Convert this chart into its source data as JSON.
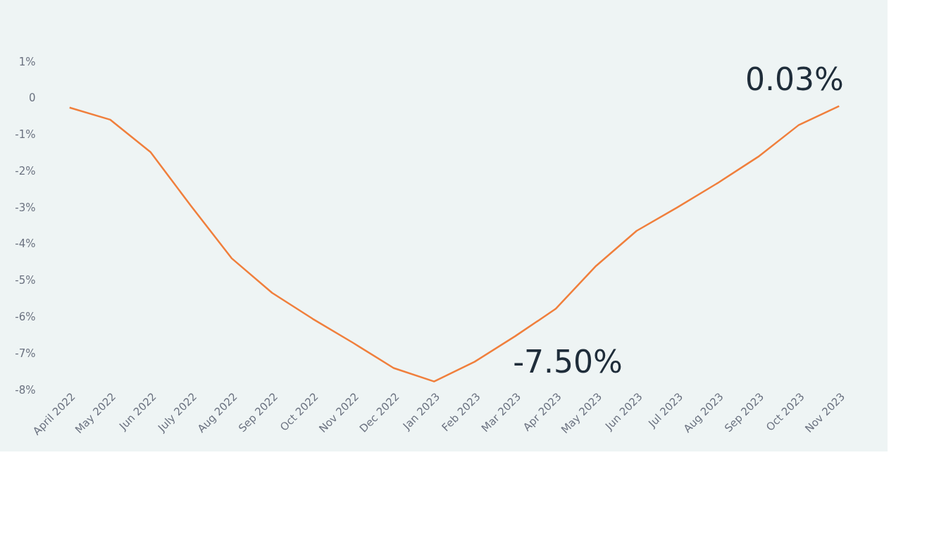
{
  "chart_data": {
    "type": "line",
    "categories": [
      "April 2022",
      "May 2022",
      "Jun 2022",
      "July 2022",
      "Aug 2022",
      "Sep 2022",
      "Oct 2022",
      "Nov 2022",
      "Dec 2022",
      "Jan 2023",
      "Feb 2023",
      "Mar 2023",
      "Apr 2023",
      "May 2023",
      "Jun 2023",
      "Jul 2023",
      "Aug 2023",
      "Sep 2023",
      "Oct 2023",
      "Nov 2023"
    ],
    "series": [
      {
        "color": "#f07f3c",
        "values": [
          -0.27,
          -0.6,
          -1.49,
          -2.97,
          -4.4,
          -5.35,
          -6.06,
          -6.72,
          -7.41,
          -7.78,
          -7.24,
          -6.54,
          -5.79,
          -4.61,
          -3.65,
          -3.01,
          -2.34,
          -1.62,
          -0.75,
          -0.23
        ]
      }
    ],
    "ylim": [
      -8,
      1
    ],
    "yticks": [
      {
        "value": 1,
        "label": "1%"
      },
      0,
      {
        "value": -1,
        "label": "-1%"
      },
      {
        "value": -2,
        "label": "-2%"
      },
      {
        "value": -3,
        "label": "-3%"
      },
      {
        "value": -4,
        "label": "-4%"
      },
      {
        "value": -5,
        "label": "-5%"
      },
      {
        "value": -6,
        "label": "-6%"
      },
      {
        "value": -7,
        "label": "-7%"
      },
      {
        "value": -8,
        "label": "-8%"
      }
    ],
    "annotations": [
      "-7.50%",
      "0.03%"
    ],
    "grid": false,
    "marker": "none",
    "line_style": "solid"
  }
}
